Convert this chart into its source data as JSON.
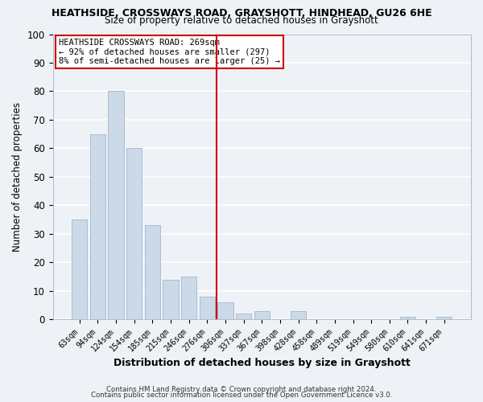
{
  "title1": "HEATHSIDE, CROSSWAYS ROAD, GRAYSHOTT, HINDHEAD, GU26 6HE",
  "title2": "Size of property relative to detached houses in Grayshott",
  "xlabel": "Distribution of detached houses by size in Grayshott",
  "ylabel": "Number of detached properties",
  "bar_labels": [
    "63sqm",
    "94sqm",
    "124sqm",
    "154sqm",
    "185sqm",
    "215sqm",
    "246sqm",
    "276sqm",
    "306sqm",
    "337sqm",
    "367sqm",
    "398sqm",
    "428sqm",
    "458sqm",
    "489sqm",
    "519sqm",
    "549sqm",
    "580sqm",
    "610sqm",
    "641sqm",
    "671sqm"
  ],
  "bar_values": [
    35,
    65,
    80,
    60,
    33,
    14,
    15,
    8,
    6,
    2,
    3,
    0,
    3,
    0,
    0,
    0,
    0,
    0,
    1,
    0,
    1
  ],
  "bar_color": "#ccd9e8",
  "bar_edge_color": "#a8bece",
  "vline_x": 7.5,
  "vline_color": "#cc0000",
  "annotation_line1": "HEATHSIDE CROSSWAYS ROAD: 269sqm",
  "annotation_line2": "← 92% of detached houses are smaller (297)",
  "annotation_line3": "8% of semi-detached houses are larger (25) →",
  "box_facecolor": "#ffffff",
  "box_edgecolor": "#cc0000",
  "ylim": [
    0,
    100
  ],
  "yticks": [
    0,
    10,
    20,
    30,
    40,
    50,
    60,
    70,
    80,
    90,
    100
  ],
  "footer1": "Contains HM Land Registry data © Crown copyright and database right 2024.",
  "footer2": "Contains public sector information licensed under the Open Government Licence v3.0.",
  "bg_color": "#eef2f7",
  "grid_color": "#ffffff"
}
